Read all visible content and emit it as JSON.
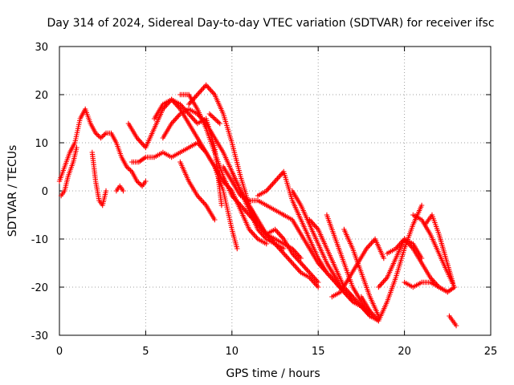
{
  "chart_data": {
    "type": "scatter",
    "title": "Day 314 of 2024, Sidereal Day-to-day VTEC variation (SDTVAR) for receiver ifsc",
    "xlabel": "GPS time / hours",
    "ylabel": "SDTVAR / TECUs",
    "xlim": [
      0,
      25
    ],
    "ylim": [
      -30,
      30
    ],
    "xticks": [
      0,
      5,
      10,
      15,
      20,
      25
    ],
    "yticks": [
      -30,
      -20,
      -10,
      0,
      10,
      20,
      30
    ],
    "grid": true,
    "marker": "plus",
    "color": "#ff0000",
    "series": [
      {
        "x": [
          0.0,
          0.3,
          0.6,
          0.9,
          1.2,
          1.5,
          1.8,
          2.1,
          2.4,
          2.7,
          3.0,
          3.3,
          3.6,
          3.9,
          4.2,
          4.5,
          4.8,
          5.0
        ],
        "y": [
          2,
          5,
          8,
          10,
          15,
          17,
          14,
          12,
          11,
          12,
          12,
          10,
          7,
          5,
          4,
          2,
          1,
          2
        ]
      },
      {
        "x": [
          0.1,
          0.3,
          0.5,
          0.8,
          1.0
        ],
        "y": [
          -1,
          0,
          3,
          6,
          9
        ]
      },
      {
        "x": [
          1.9,
          2.1,
          2.3,
          2.5,
          2.7
        ],
        "y": [
          8,
          2,
          -2,
          -3,
          0
        ]
      },
      {
        "x": [
          3.3,
          3.5,
          3.7
        ],
        "y": [
          0,
          1,
          0
        ]
      },
      {
        "x": [
          4.0,
          4.5,
          5.0,
          5.5,
          6.0,
          6.5,
          7.0,
          7.5,
          8.0,
          8.5,
          9.0,
          9.4
        ],
        "y": [
          14,
          11,
          9,
          13,
          17,
          19,
          18,
          16,
          14,
          15,
          9,
          -3
        ]
      },
      {
        "x": [
          4.2,
          4.6,
          5.0,
          5.5,
          6.0,
          6.5,
          7.0,
          7.5,
          8.0,
          8.5,
          9.0,
          9.5,
          10.0,
          10.3
        ],
        "y": [
          6,
          6,
          7,
          7,
          8,
          7,
          8,
          9,
          10,
          8,
          5,
          0,
          -8,
          -12
        ]
      },
      {
        "x": [
          5.5,
          6.0,
          6.5,
          7.0,
          7.5,
          8.0,
          8.5,
          9.0,
          9.5,
          10.0,
          10.5,
          11.0,
          11.5,
          12.0
        ],
        "y": [
          15,
          18,
          19,
          17,
          14,
          11,
          8,
          5,
          2,
          0,
          -4,
          -8,
          -10,
          -11
        ]
      },
      {
        "x": [
          6.0,
          6.5,
          7.0,
          7.5,
          8.0,
          8.5,
          9.0,
          9.5,
          10.0,
          10.5,
          11.0,
          11.5,
          12.0,
          12.5,
          13.0
        ],
        "y": [
          11,
          14,
          16,
          17,
          16,
          14,
          11,
          8,
          4,
          0,
          -3,
          -6,
          -9,
          -11,
          -12
        ]
      },
      {
        "x": [
          7.0,
          7.5,
          8.0,
          8.5,
          9.0,
          9.5,
          10.0,
          10.5,
          11.0,
          11.5,
          12.0,
          12.5,
          13.0,
          13.5,
          14.0
        ],
        "y": [
          20,
          20,
          17,
          13,
          8,
          3,
          -1,
          -3,
          -5,
          -7,
          -9,
          -10,
          -11,
          -12,
          -14
        ]
      },
      {
        "x": [
          7.5,
          8.0,
          8.5,
          9.0,
          9.5,
          10.0,
          10.5,
          11.0,
          11.5,
          12.0,
          12.5,
          13.0,
          13.5,
          14.0,
          14.5,
          15.0
        ],
        "y": [
          18,
          20,
          22,
          20,
          16,
          10,
          3,
          -3,
          -7,
          -9,
          -8,
          -10,
          -13,
          -15,
          -17,
          -19
        ]
      },
      {
        "x": [
          7.0,
          7.5,
          8.0,
          8.5,
          9.0
        ],
        "y": [
          6,
          2,
          -1,
          -3,
          -6
        ]
      },
      {
        "x": [
          8.7,
          9.0,
          9.3
        ],
        "y": [
          16,
          15,
          14
        ]
      },
      {
        "x": [
          9.5,
          10.0,
          10.5,
          11.0,
          11.5,
          12.0,
          12.5,
          13.0
        ],
        "y": [
          5,
          2,
          -1,
          -2,
          -2,
          -3,
          -4,
          -5
        ]
      },
      {
        "x": [
          10.0,
          10.5,
          11.0,
          11.5,
          12.0,
          12.5,
          13.0,
          13.5,
          14.0,
          14.5,
          15.0
        ],
        "y": [
          4,
          0,
          -4,
          -8,
          -10,
          -11,
          -13,
          -15,
          -17,
          -18,
          -20
        ]
      },
      {
        "x": [
          11.5,
          12.0,
          12.5,
          13.0,
          13.5,
          14.0,
          14.5,
          15.0,
          15.5,
          16.0,
          16.5,
          17.0
        ],
        "y": [
          -1,
          0,
          2,
          4,
          -2,
          -6,
          -10,
          -14,
          -17,
          -19,
          -21,
          -22
        ]
      },
      {
        "x": [
          13.0,
          13.5,
          14.0,
          14.5,
          15.0,
          15.5,
          16.0,
          16.5,
          17.0,
          17.5,
          18.0
        ],
        "y": [
          -5,
          -6,
          -9,
          -12,
          -15,
          -17,
          -19,
          -21,
          -23,
          -24,
          -26
        ]
      },
      {
        "x": [
          13.5,
          14.0,
          14.5,
          15.0,
          15.5,
          16.0,
          16.5,
          17.0,
          17.5,
          18.0
        ],
        "y": [
          0,
          -3,
          -7,
          -11,
          -15,
          -18,
          -21,
          -23,
          -24,
          -25
        ]
      },
      {
        "x": [
          14.5,
          15.0,
          15.5,
          16.0,
          16.5,
          17.0,
          17.5,
          18.0,
          18.5
        ],
        "y": [
          -6,
          -8,
          -12,
          -16,
          -20,
          -22,
          -24,
          -26,
          -27
        ]
      },
      {
        "x": [
          15.5,
          16.0,
          16.5,
          17.0,
          17.5,
          18.0
        ],
        "y": [
          -5,
          -10,
          -15,
          -20,
          -23,
          -26
        ]
      },
      {
        "x": [
          16.5,
          17.0,
          17.5,
          18.0,
          18.5
        ],
        "y": [
          -8,
          -12,
          -17,
          -22,
          -26
        ]
      },
      {
        "x": [
          15.8,
          16.3,
          16.8,
          17.3,
          17.8,
          18.3,
          18.8
        ],
        "y": [
          -22,
          -21,
          -18,
          -15,
          -12,
          -10,
          -14
        ]
      },
      {
        "x": [
          17.5,
          18.0,
          18.5,
          19.0,
          19.5,
          20.0,
          20.5,
          21.0
        ],
        "y": [
          -22,
          -25,
          -27,
          -23,
          -18,
          -12,
          -7,
          -3
        ]
      },
      {
        "x": [
          18.5,
          19.0,
          19.5,
          20.0,
          20.5,
          21.0,
          21.5,
          22.0,
          22.5
        ],
        "y": [
          -20,
          -18,
          -14,
          -10,
          -12,
          -15,
          -18,
          -20,
          -21
        ]
      },
      {
        "x": [
          19.0,
          19.5,
          20.0,
          20.5,
          21.0
        ],
        "y": [
          -13,
          -12,
          -10,
          -11,
          -14
        ]
      },
      {
        "x": [
          20.0,
          20.5,
          21.0,
          21.5,
          22.0,
          22.5,
          22.9
        ],
        "y": [
          -19,
          -20,
          -19,
          -19,
          -20,
          -21,
          -20
        ]
      },
      {
        "x": [
          20.5,
          21.0,
          21.5,
          22.0,
          22.5,
          22.9
        ],
        "y": [
          -5,
          -6,
          -9,
          -13,
          -17,
          -20
        ]
      },
      {
        "x": [
          21.2,
          21.6,
          22.0,
          22.4,
          22.8
        ],
        "y": [
          -7,
          -5,
          -9,
          -14,
          -19
        ]
      },
      {
        "x": [
          22.6,
          22.8,
          23.0
        ],
        "y": [
          -26,
          -27,
          -28
        ]
      }
    ]
  }
}
